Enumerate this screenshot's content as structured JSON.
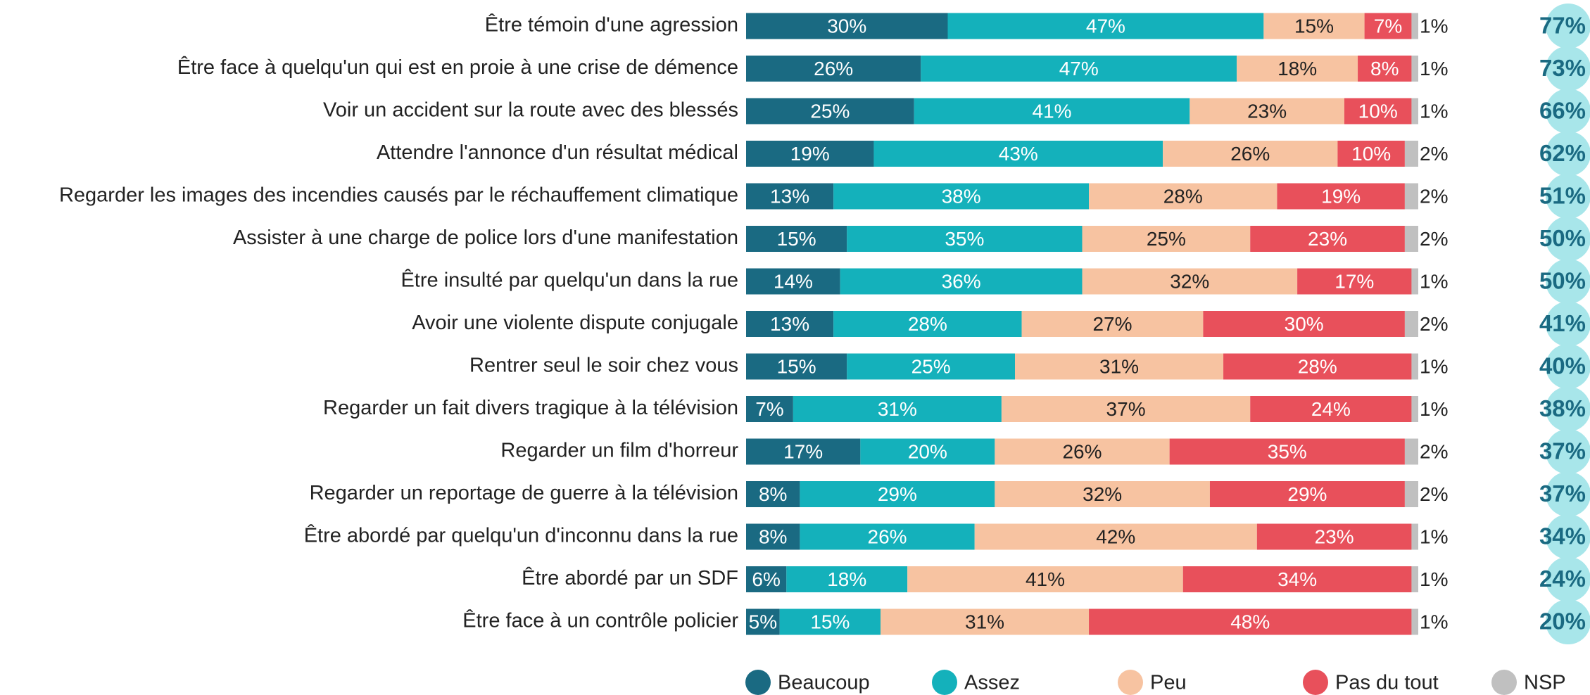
{
  "chart_data": {
    "type": "stacked_barh",
    "categories": [
      "Être témoin d'une agression",
      "Être face à quelqu'un qui est en proie à une crise de démence",
      "Voir un accident sur la route avec des blessés",
      "Attendre l'annonce d'un résultat médical",
      "Regarder les images des incendies causés par le réchauffement climatique",
      "Assister à une charge de police lors d'une manifestation",
      "Être insulté par quelqu'un dans la rue",
      "Avoir une violente dispute conjugale",
      "Rentrer seul le soir chez vous",
      "Regarder un fait divers tragique à la télévision",
      "Regarder un film d'horreur",
      "Regarder un reportage de guerre à la télévision",
      "Être abordé par quelqu'un d'inconnu dans la rue",
      "Être abordé par un SDF",
      "Être face à un contrôle policier"
    ],
    "xlim": [
      0,
      100
    ],
    "series": [
      {
        "name": "Beaucoup",
        "color": "#1a6a82",
        "values": [
          30,
          26,
          25,
          19,
          13,
          15,
          14,
          13,
          15,
          7,
          17,
          8,
          8,
          6,
          5
        ],
        "value_labels": [
          "30%",
          "26%",
          "25%",
          "19%",
          "13%",
          "15%",
          "14%",
          "13%",
          "15%",
          "7%",
          "17%",
          "8%",
          "8%",
          "6%",
          "5%"
        ]
      },
      {
        "name": "Assez",
        "color": "#14b1bb",
        "values": [
          47,
          47,
          41,
          43,
          38,
          35,
          36,
          28,
          25,
          31,
          20,
          29,
          26,
          18,
          15
        ],
        "value_labels": [
          "47%",
          "47%",
          "41%",
          "43%",
          "38%",
          "35%",
          "36%",
          "28%",
          "25%",
          "31%",
          "20%",
          "29%",
          "26%",
          "18%",
          "15%"
        ]
      },
      {
        "name": "Peu",
        "color": "#f7c3a1",
        "values": [
          15,
          18,
          23,
          26,
          28,
          25,
          32,
          27,
          31,
          37,
          26,
          32,
          42,
          41,
          31
        ],
        "value_labels": [
          "15%",
          "18%",
          "23%",
          "26%",
          "28%",
          "25%",
          "32%",
          "27%",
          "31%",
          "37%",
          "26%",
          "32%",
          "42%",
          "41%",
          "31%"
        ]
      },
      {
        "name": "Pas du tout",
        "color": "#e8505b",
        "values": [
          7,
          8,
          10,
          10,
          19,
          23,
          17,
          30,
          28,
          24,
          35,
          29,
          23,
          34,
          48
        ],
        "value_labels": [
          "7%",
          "8%",
          "10%",
          "10%",
          "19%",
          "23%",
          "17%",
          "30%",
          "28%",
          "24%",
          "35%",
          "29%",
          "23%",
          "34%",
          "48%"
        ]
      },
      {
        "name": "NSP",
        "color": "#c0c0c0",
        "values": [
          1,
          1,
          1,
          2,
          2,
          2,
          1,
          2,
          1,
          1,
          2,
          2,
          1,
          1,
          1
        ],
        "value_labels": [
          "1%",
          "1%",
          "1%",
          "2%",
          "2%",
          "2%",
          "1%",
          "2%",
          "1%",
          "1%",
          "2%",
          "2%",
          "1%",
          "1%",
          "1%"
        ]
      }
    ],
    "totals": {
      "color": "#a8e6ea",
      "values": [
        77,
        73,
        66,
        62,
        51,
        50,
        50,
        41,
        40,
        38,
        37,
        37,
        34,
        24,
        20
      ],
      "value_labels": [
        "77%",
        "73%",
        "66%",
        "62%",
        "51%",
        "50%",
        "50%",
        "41%",
        "40%",
        "38%",
        "37%",
        "37%",
        "34%",
        "24%",
        "20%"
      ]
    }
  }
}
